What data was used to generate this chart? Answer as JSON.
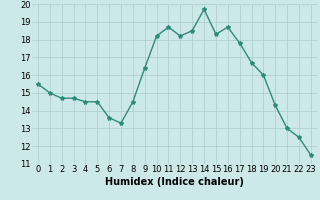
{
  "x": [
    0,
    1,
    2,
    3,
    4,
    5,
    6,
    7,
    8,
    9,
    10,
    11,
    12,
    13,
    14,
    15,
    16,
    17,
    18,
    19,
    20,
    21,
    22,
    23
  ],
  "y": [
    15.5,
    15.0,
    14.7,
    14.7,
    14.5,
    14.5,
    13.6,
    13.3,
    14.5,
    16.4,
    18.2,
    18.7,
    18.2,
    18.5,
    19.7,
    18.3,
    18.7,
    17.8,
    16.7,
    16.0,
    14.3,
    13.0,
    12.5,
    11.5
  ],
  "xlabel": "Humidex (Indice chaleur)",
  "ylim": [
    11,
    20
  ],
  "xlim": [
    -0.5,
    23.5
  ],
  "yticks": [
    11,
    12,
    13,
    14,
    15,
    16,
    17,
    18,
    19,
    20
  ],
  "xticks": [
    0,
    1,
    2,
    3,
    4,
    5,
    6,
    7,
    8,
    9,
    10,
    11,
    12,
    13,
    14,
    15,
    16,
    17,
    18,
    19,
    20,
    21,
    22,
    23
  ],
  "line_color": "#2e8b7a",
  "marker": "*",
  "markersize": 3.0,
  "bg_color": "#cce8e8",
  "grid_color": "#aacccc",
  "tick_fontsize": 6.0,
  "xlabel_fontsize": 7.0,
  "linewidth": 1.0
}
